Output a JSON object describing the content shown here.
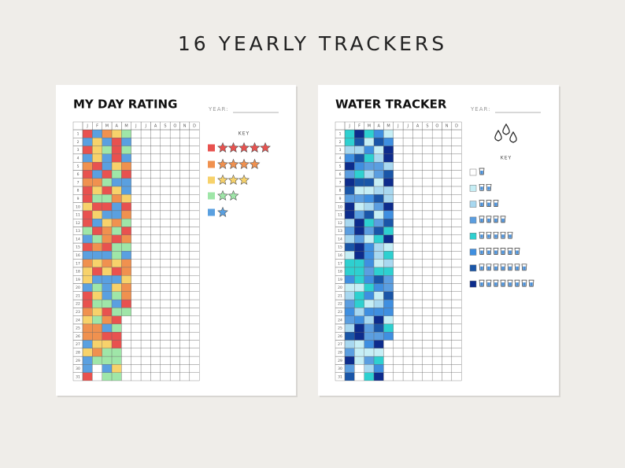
{
  "header": {
    "title": "16 YEARLY TRACKERS"
  },
  "months": [
    "J",
    "F",
    "M",
    "A",
    "M",
    "J",
    "J",
    "A",
    "S",
    "O",
    "N",
    "D"
  ],
  "days": [
    1,
    2,
    3,
    4,
    5,
    6,
    7,
    8,
    9,
    10,
    11,
    12,
    13,
    14,
    15,
    16,
    17,
    18,
    19,
    20,
    21,
    22,
    23,
    24,
    25,
    26,
    27,
    28,
    29,
    30,
    31
  ],
  "pages": [
    {
      "title": "MY DAY RATING",
      "year_label": "YEAR:",
      "key_label": "KEY"
    },
    {
      "title": "WATER TRACKER",
      "year_label": "YEAR:",
      "key_label": "KEY"
    }
  ]
}
